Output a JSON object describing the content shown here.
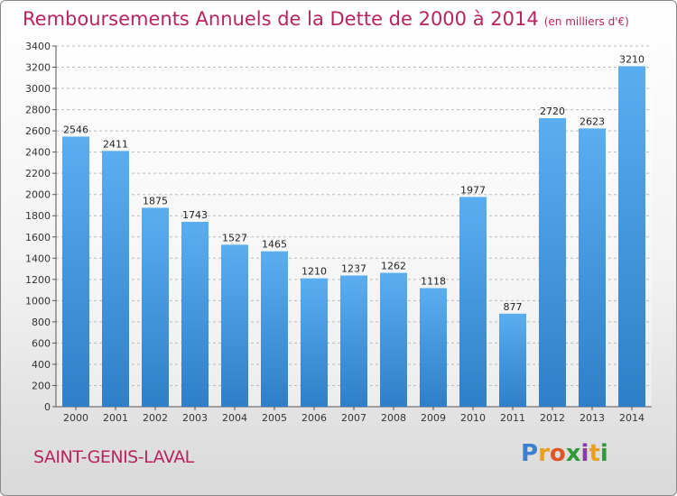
{
  "title": "Remboursements Annuels de la Dette de 2000 à 2014",
  "unit": "(en milliers d'€)",
  "city": "SAINT-GENIS-LAVAL",
  "logo": {
    "letters": [
      "P",
      "r",
      "o",
      "x",
      "i",
      "t",
      "i"
    ],
    "colors": [
      "#3a7fd0",
      "#e8a21a",
      "#e0542a",
      "#2e9a3a",
      "#8a3aa8",
      "#e8a21a",
      "#2e9a3a"
    ]
  },
  "colors": {
    "bar": "#4a9ee0",
    "title": "#b8245d"
  },
  "chart_data": {
    "type": "bar",
    "title": "Remboursements Annuels de la Dette de 2000 à 2014",
    "categories": [
      "2000",
      "2001",
      "2002",
      "2003",
      "2004",
      "2005",
      "2006",
      "2007",
      "2008",
      "2009",
      "2010",
      "2011",
      "2012",
      "2013",
      "2014"
    ],
    "values": [
      2546,
      2411,
      1875,
      1743,
      1527,
      1465,
      1210,
      1237,
      1262,
      1118,
      1977,
      877,
      2720,
      2623,
      3210
    ],
    "ylim": [
      0,
      3400
    ],
    "yticks": [
      0,
      200,
      400,
      600,
      800,
      1000,
      1200,
      1400,
      1600,
      1800,
      2000,
      2200,
      2400,
      2600,
      2800,
      3000,
      3200,
      3400
    ],
    "grid": true,
    "xlabel": "",
    "ylabel": ""
  }
}
